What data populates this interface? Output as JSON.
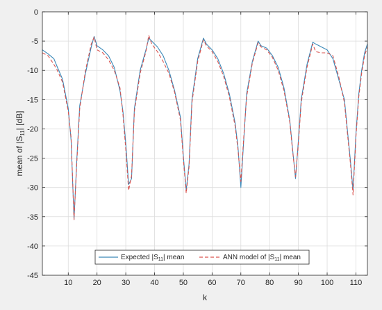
{
  "colors": {
    "figure_bg": "#f0f0f0",
    "axes_bg": "#ffffff",
    "grid": "#dcdcdc",
    "axis": "#262626",
    "expected": "#3a88b8",
    "ann": "#d9534f"
  },
  "chart_data": {
    "type": "line",
    "title": "",
    "xlabel": "k",
    "ylabel": {
      "pre": "mean of |S",
      "sub": "11",
      "post": "| [dB]"
    },
    "xlim": [
      1,
      114
    ],
    "ylim": [
      -45,
      0
    ],
    "xticks": [
      10,
      20,
      30,
      40,
      50,
      60,
      70,
      80,
      90,
      100,
      110
    ],
    "yticks": [
      0,
      -5,
      -10,
      -15,
      -20,
      -25,
      -30,
      -35,
      -40,
      -45
    ],
    "grid": true,
    "legend": {
      "placement": "bottom-center",
      "orientation": "horizontal",
      "entries": [
        {
          "pre": "Expected |S",
          "sub": "11",
          "post": "| mean"
        },
        {
          "pre": "ANN model of |S",
          "sub": "11",
          "post": "| mean"
        }
      ]
    },
    "series": [
      {
        "style": "solid",
        "points": [
          [
            1,
            -6.5
          ],
          [
            3,
            -7.2
          ],
          [
            5,
            -8.0
          ],
          [
            6,
            -9.2
          ],
          [
            8,
            -11.5
          ],
          [
            10,
            -16.5
          ],
          [
            11,
            -22.0
          ],
          [
            12,
            -35.5
          ],
          [
            13,
            -25.0
          ],
          [
            14,
            -16.0
          ],
          [
            16,
            -10.5
          ],
          [
            18,
            -6.0
          ],
          [
            19,
            -4.2
          ],
          [
            20,
            -5.8
          ],
          [
            22,
            -6.5
          ],
          [
            24,
            -7.5
          ],
          [
            26,
            -9.5
          ],
          [
            28,
            -13.5
          ],
          [
            29,
            -17.0
          ],
          [
            30,
            -22.5
          ],
          [
            31,
            -29.5
          ],
          [
            32,
            -28.5
          ],
          [
            33,
            -16.5
          ],
          [
            35,
            -10.0
          ],
          [
            37,
            -6.5
          ],
          [
            38,
            -4.5
          ],
          [
            39,
            -5.0
          ],
          [
            41,
            -6.0
          ],
          [
            43,
            -7.5
          ],
          [
            45,
            -10.0
          ],
          [
            47,
            -13.5
          ],
          [
            49,
            -18.0
          ],
          [
            50,
            -24.5
          ],
          [
            51,
            -30.5
          ],
          [
            52,
            -26.0
          ],
          [
            53,
            -15.0
          ],
          [
            55,
            -8.0
          ],
          [
            57,
            -4.5
          ],
          [
            58,
            -5.5
          ],
          [
            60,
            -6.5
          ],
          [
            62,
            -8.0
          ],
          [
            64,
            -10.5
          ],
          [
            66,
            -14.0
          ],
          [
            68,
            -19.0
          ],
          [
            69,
            -23.0
          ],
          [
            70,
            -30.0
          ],
          [
            71,
            -22.0
          ],
          [
            72,
            -14.0
          ],
          [
            74,
            -8.5
          ],
          [
            76,
            -5.0
          ],
          [
            77,
            -5.8
          ],
          [
            79,
            -6.2
          ],
          [
            81,
            -7.5
          ],
          [
            83,
            -9.5
          ],
          [
            85,
            -13.0
          ],
          [
            87,
            -18.5
          ],
          [
            88,
            -23.5
          ],
          [
            89,
            -28.5
          ],
          [
            90,
            -22.0
          ],
          [
            91,
            -15.0
          ],
          [
            93,
            -9.0
          ],
          [
            95,
            -5.2
          ],
          [
            96,
            -5.5
          ],
          [
            98,
            -6.0
          ],
          [
            100,
            -6.5
          ],
          [
            102,
            -8.0
          ],
          [
            104,
            -11.5
          ],
          [
            106,
            -15.0
          ],
          [
            107,
            -20.0
          ],
          [
            108,
            -25.0
          ],
          [
            109,
            -30.5
          ],
          [
            110,
            -21.0
          ],
          [
            111,
            -14.0
          ],
          [
            112,
            -10.0
          ],
          [
            113,
            -7.0
          ],
          [
            114,
            -5.5
          ]
        ]
      },
      {
        "style": "dashed",
        "points": [
          [
            1,
            -7.0
          ],
          [
            3,
            -7.5
          ],
          [
            5,
            -9.0
          ],
          [
            6,
            -9.8
          ],
          [
            8,
            -12.0
          ],
          [
            10,
            -17.0
          ],
          [
            11,
            -21.5
          ],
          [
            12,
            -35.5
          ],
          [
            13,
            -25.5
          ],
          [
            14,
            -16.5
          ],
          [
            16,
            -10.0
          ],
          [
            18,
            -5.5
          ],
          [
            19,
            -4.3
          ],
          [
            20,
            -6.5
          ],
          [
            22,
            -7.0
          ],
          [
            24,
            -8.2
          ],
          [
            26,
            -10.0
          ],
          [
            28,
            -13.0
          ],
          [
            29,
            -17.5
          ],
          [
            30,
            -23.5
          ],
          [
            31,
            -30.5
          ],
          [
            32,
            -28.0
          ],
          [
            33,
            -17.0
          ],
          [
            35,
            -10.5
          ],
          [
            37,
            -6.8
          ],
          [
            38,
            -4.0
          ],
          [
            39,
            -5.5
          ],
          [
            41,
            -6.8
          ],
          [
            43,
            -8.5
          ],
          [
            45,
            -10.5
          ],
          [
            47,
            -13.8
          ],
          [
            49,
            -18.5
          ],
          [
            50,
            -25.0
          ],
          [
            51,
            -31.0
          ],
          [
            52,
            -26.5
          ],
          [
            53,
            -15.5
          ],
          [
            55,
            -8.5
          ],
          [
            57,
            -4.8
          ],
          [
            58,
            -5.8
          ],
          [
            60,
            -6.8
          ],
          [
            62,
            -8.5
          ],
          [
            64,
            -11.0
          ],
          [
            66,
            -14.5
          ],
          [
            68,
            -19.5
          ],
          [
            69,
            -23.5
          ],
          [
            70,
            -29.0
          ],
          [
            71,
            -21.5
          ],
          [
            72,
            -14.5
          ],
          [
            74,
            -8.8
          ],
          [
            76,
            -5.3
          ],
          [
            77,
            -6.0
          ],
          [
            79,
            -6.5
          ],
          [
            81,
            -7.8
          ],
          [
            83,
            -10.0
          ],
          [
            85,
            -13.5
          ],
          [
            87,
            -18.8
          ],
          [
            88,
            -23.8
          ],
          [
            89,
            -28.2
          ],
          [
            90,
            -22.5
          ],
          [
            91,
            -15.5
          ],
          [
            93,
            -9.5
          ],
          [
            95,
            -5.5
          ],
          [
            96,
            -6.8
          ],
          [
            98,
            -7.0
          ],
          [
            100,
            -7.0
          ],
          [
            102,
            -7.5
          ],
          [
            104,
            -11.0
          ],
          [
            106,
            -15.5
          ],
          [
            107,
            -20.5
          ],
          [
            108,
            -25.5
          ],
          [
            109,
            -31.3
          ],
          [
            110,
            -21.5
          ],
          [
            111,
            -14.5
          ],
          [
            112,
            -10.5
          ],
          [
            113,
            -7.5
          ],
          [
            114,
            -6.0
          ]
        ]
      }
    ]
  }
}
